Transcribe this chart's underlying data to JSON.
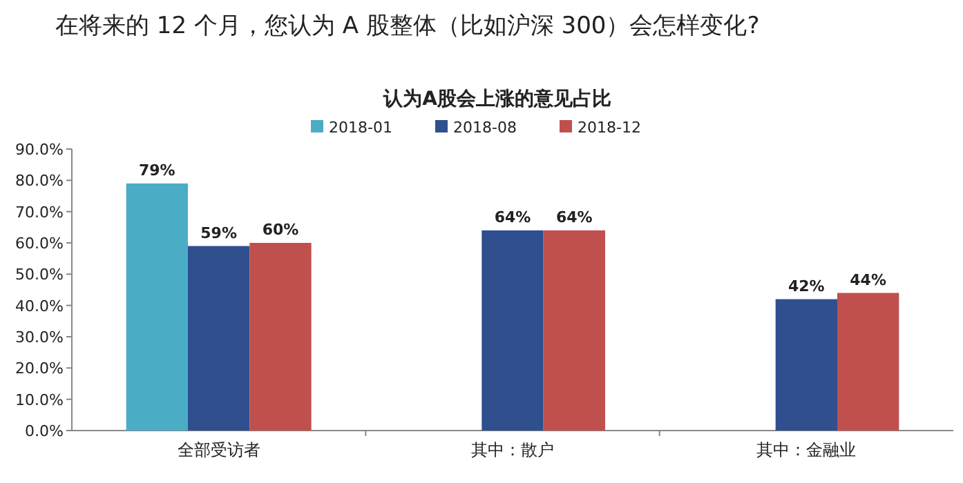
{
  "chart_data": {
    "type": "bar",
    "title": "在将来的 12 个月，您认为 A 股整体（比如沪深 300）会怎样变化?",
    "subtitle": "认为A股会上涨的意见占比",
    "categories": [
      "全部受访者",
      "其中：散户",
      "其中：金融业"
    ],
    "series": [
      {
        "name": "2018-01",
        "color": "#4bacc6",
        "values": [
          79,
          null,
          null
        ],
        "value_labels": [
          "79%",
          null,
          null
        ]
      },
      {
        "name": "2018-08",
        "color": "#2f4f8f",
        "values": [
          59,
          64,
          42
        ],
        "value_labels": [
          "59%",
          "64%",
          "42%"
        ]
      },
      {
        "name": "2018-12",
        "color": "#c0504d",
        "values": [
          60,
          64,
          44
        ],
        "value_labels": [
          "60%",
          "64%",
          "44%"
        ]
      }
    ],
    "ylim": [
      0,
      90
    ],
    "yticks": [
      {
        "value": 0,
        "label": "0.0%"
      },
      {
        "value": 10,
        "label": "10.0%"
      },
      {
        "value": 20,
        "label": "20.0%"
      },
      {
        "value": 30,
        "label": "30.0%"
      },
      {
        "value": 40,
        "label": "40.0%"
      },
      {
        "value": 50,
        "label": "50.0%"
      },
      {
        "value": 60,
        "label": "60.0%"
      },
      {
        "value": 70,
        "label": "70.0%"
      },
      {
        "value": 80,
        "label": "80.0%"
      },
      {
        "value": 90,
        "label": "90.0%"
      }
    ],
    "legend": "top",
    "grid": false
  }
}
